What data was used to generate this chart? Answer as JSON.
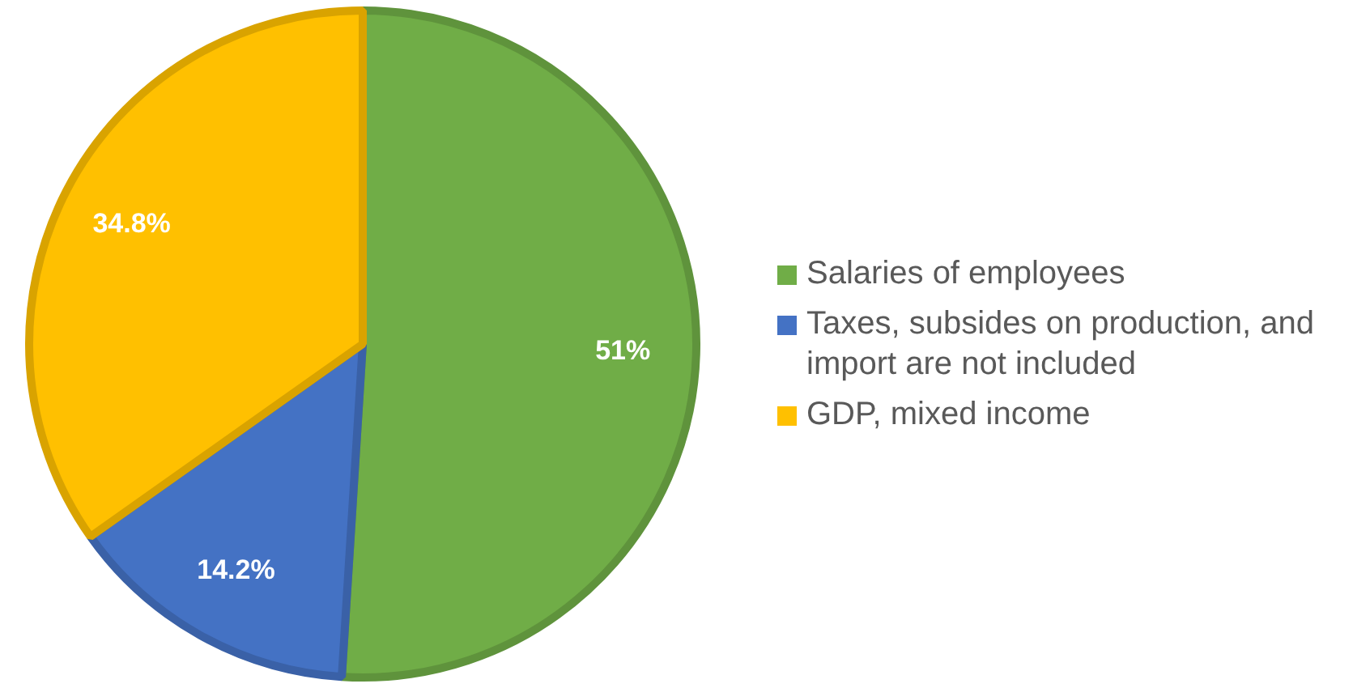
{
  "chart_data": {
    "type": "pie",
    "categories": [
      "Salaries of employees",
      "Taxes, subsides on production, and import are not included",
      "GDP, mixed income"
    ],
    "values": [
      51,
      14.2,
      34.8
    ],
    "colors": [
      "#70ad47",
      "#4472c4",
      "#ffc000"
    ],
    "value_labels": [
      "51%",
      "14.2%",
      "34.8%"
    ],
    "legend": "right"
  }
}
